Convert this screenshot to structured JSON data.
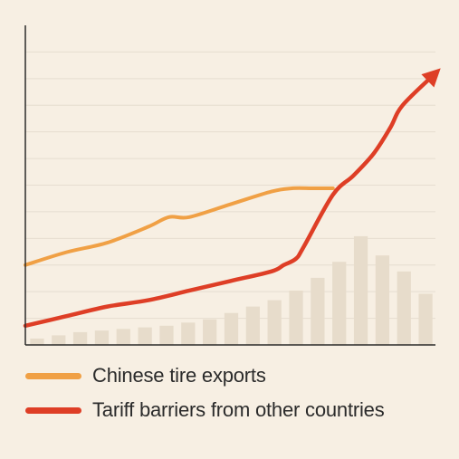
{
  "chart_data": {
    "type": "line",
    "title": "",
    "xlabel": "",
    "ylabel": "",
    "ylim": [
      0,
      100
    ],
    "gridlines": 11,
    "grid": true,
    "legend_position": "bottom",
    "bars": {
      "color": "#e7dccb",
      "values": [
        2,
        3,
        4,
        4.5,
        5,
        5.5,
        6,
        7,
        8,
        10,
        12,
        14,
        17,
        21,
        26,
        34,
        28,
        23,
        16
      ]
    },
    "series": [
      {
        "name": "Chinese tire exports",
        "color": "#f0a045",
        "x": [
          0,
          10,
          20,
          30,
          35,
          40,
          50,
          60,
          65,
          70,
          75
        ],
        "y": [
          25,
          29,
          32,
          37,
          40,
          40,
          44,
          48,
          49,
          49,
          49
        ]
      },
      {
        "name": "Tariff barriers from other countries",
        "color": "#de3e26",
        "x": [
          0,
          10,
          20,
          30,
          40,
          50,
          60,
          63,
          66,
          68,
          75,
          80,
          85,
          89,
          92,
          100
        ],
        "y": [
          6,
          9,
          12,
          14,
          17,
          20,
          23,
          25,
          27,
          31,
          47,
          53,
          60,
          68,
          75,
          85
        ]
      }
    ]
  }
}
